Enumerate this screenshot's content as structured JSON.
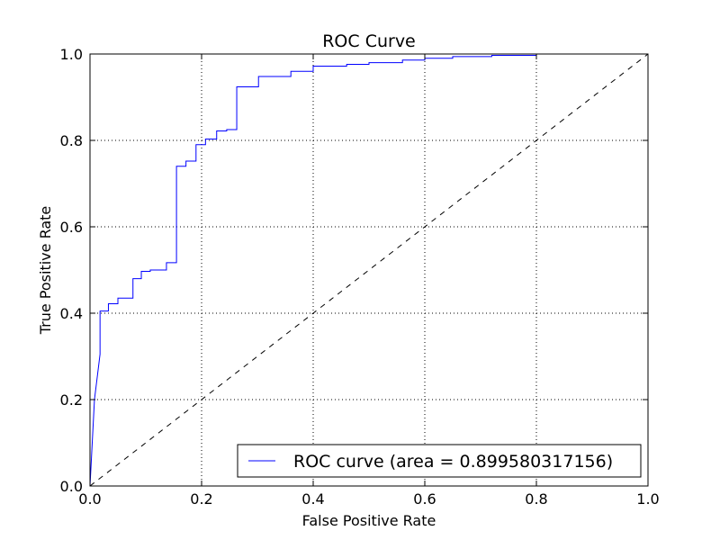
{
  "chart_data": {
    "type": "line",
    "title": "ROC Curve",
    "xlabel": "False Positive Rate",
    "ylabel": "True Positive Rate",
    "xlim": [
      0.0,
      1.0
    ],
    "ylim": [
      0.0,
      1.0
    ],
    "grid": true,
    "legend_position": "lower-right",
    "x_ticks": [
      "0.0",
      "0.2",
      "0.4",
      "0.6",
      "0.8",
      "1.0"
    ],
    "y_ticks": [
      "0.0",
      "0.2",
      "0.4",
      "0.6",
      "0.8",
      "1.0"
    ],
    "series": [
      {
        "name": "ROC curve (area = 0.899580317156)",
        "color": "#0000ff",
        "style": "solid",
        "points": [
          [
            0.0,
            0.0
          ],
          [
            0.008,
            0.2
          ],
          [
            0.018,
            0.305
          ],
          [
            0.018,
            0.405
          ],
          [
            0.033,
            0.405
          ],
          [
            0.033,
            0.422
          ],
          [
            0.05,
            0.422
          ],
          [
            0.05,
            0.435
          ],
          [
            0.077,
            0.435
          ],
          [
            0.077,
            0.48
          ],
          [
            0.092,
            0.48
          ],
          [
            0.092,
            0.497
          ],
          [
            0.108,
            0.497
          ],
          [
            0.108,
            0.5
          ],
          [
            0.137,
            0.5
          ],
          [
            0.137,
            0.517
          ],
          [
            0.155,
            0.517
          ],
          [
            0.155,
            0.74
          ],
          [
            0.172,
            0.74
          ],
          [
            0.172,
            0.752
          ],
          [
            0.19,
            0.752
          ],
          [
            0.19,
            0.79
          ],
          [
            0.207,
            0.79
          ],
          [
            0.207,
            0.803
          ],
          [
            0.227,
            0.803
          ],
          [
            0.227,
            0.822
          ],
          [
            0.245,
            0.822
          ],
          [
            0.245,
            0.825
          ],
          [
            0.263,
            0.825
          ],
          [
            0.263,
            0.924
          ],
          [
            0.302,
            0.924
          ],
          [
            0.302,
            0.948
          ],
          [
            0.36,
            0.948
          ],
          [
            0.36,
            0.96
          ],
          [
            0.4,
            0.96
          ],
          [
            0.4,
            0.972
          ],
          [
            0.46,
            0.972
          ],
          [
            0.46,
            0.976
          ],
          [
            0.5,
            0.976
          ],
          [
            0.5,
            0.98
          ],
          [
            0.56,
            0.98
          ],
          [
            0.56,
            0.986
          ],
          [
            0.6,
            0.986
          ],
          [
            0.6,
            0.99
          ],
          [
            0.65,
            0.99
          ],
          [
            0.65,
            0.994
          ],
          [
            0.72,
            0.994
          ],
          [
            0.72,
            0.997
          ],
          [
            0.8,
            0.997
          ],
          [
            0.8,
            1.0
          ],
          [
            0.925,
            1.0
          ]
        ]
      },
      {
        "name": "",
        "color": "#000000",
        "style": "dashed",
        "points": [
          [
            0.0,
            0.0
          ],
          [
            1.0,
            1.0
          ]
        ]
      }
    ]
  }
}
